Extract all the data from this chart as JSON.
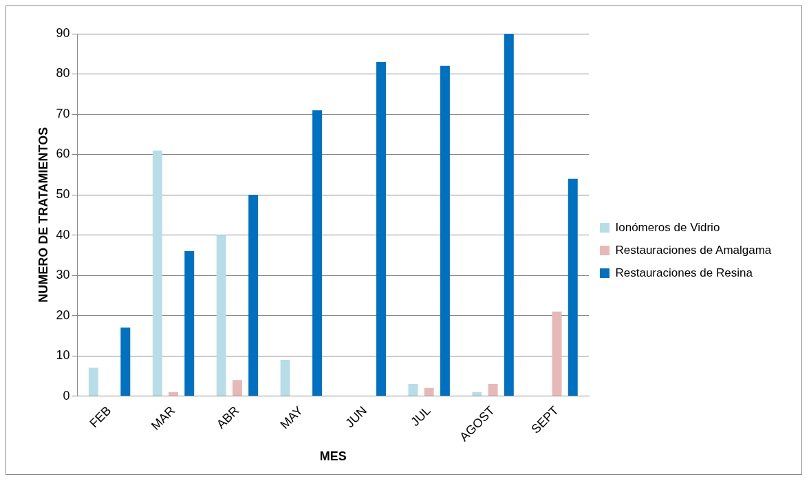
{
  "chart_data": {
    "type": "bar",
    "xlabel": "MES",
    "ylabel": "NUMERO DE TRATAMIENTOS",
    "categories": [
      "FEB",
      "MAR",
      "ABR",
      "MAY",
      "JUN",
      "JUL",
      "AGOST",
      "SEPT"
    ],
    "series": [
      {
        "name": "Ionómeros de Vidrio",
        "color": "#b7dde8",
        "values": [
          7,
          61,
          40,
          9,
          0,
          3,
          1,
          0
        ]
      },
      {
        "name": "Restauraciones de Amalgama",
        "color": "#e6b9b8",
        "values": [
          0,
          1,
          4,
          0,
          0,
          2,
          3,
          21
        ]
      },
      {
        "name": "Restauraciones de Resina",
        "color": "#0070c0",
        "values": [
          17,
          36,
          50,
          71,
          83,
          82,
          90,
          54
        ]
      }
    ],
    "ylim": [
      0,
      90
    ],
    "yticks": [
      0,
      10,
      20,
      30,
      40,
      50,
      60,
      70,
      80,
      90
    ],
    "grid": "y",
    "legend": "right"
  }
}
